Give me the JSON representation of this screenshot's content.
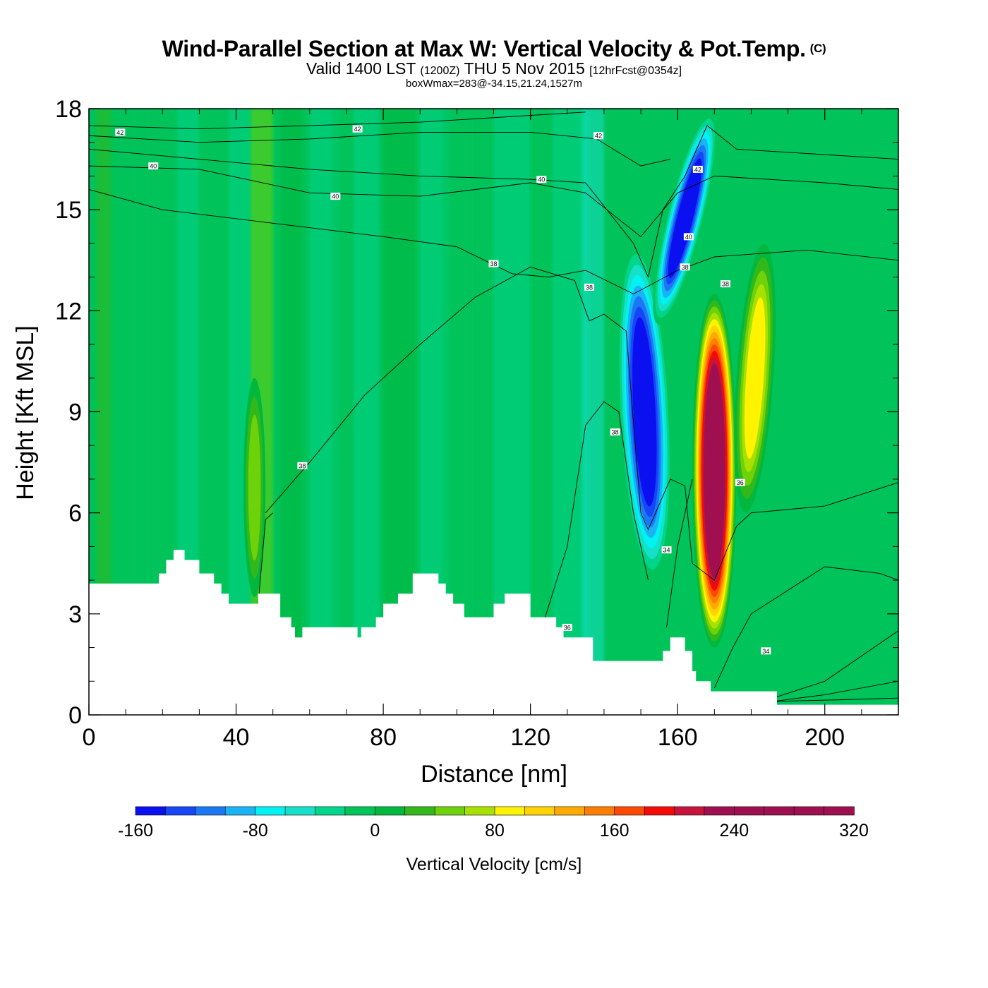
{
  "title": {
    "main": "Wind-Parallel Section at Max W: Vertical Velocity & Pot.Temp.",
    "copyright": "(C)",
    "valid_prefix": "Valid 1400 LST",
    "valid_zulu": "(1200Z)",
    "valid_date": "THU 5 Nov 2015",
    "forecast": "[12hrFcst@0354z]",
    "box_wmax": "boxWmax=283@-34.15,21.24,1527m"
  },
  "colors": {
    "ramp": [
      "#0a10f0",
      "#1646f5",
      "#1a78f5",
      "#19b4f5",
      "#00f2f2",
      "#15e0c8",
      "#00d58c",
      "#00c35a",
      "#00b83e",
      "#32b81a",
      "#6ed20a",
      "#a8e100",
      "#fff300",
      "#ffd200",
      "#ffaa00",
      "#ff7d00",
      "#ff4800",
      "#f50a0a",
      "#c8143c",
      "#a01050"
    ],
    "background_field": "#00c35a",
    "terrain": "#ffffff"
  },
  "chart_data": {
    "type": "heatmap",
    "xlabel": "Distance [nm]",
    "ylabel": "Height [Kft MSL]",
    "xlim": [
      0,
      220
    ],
    "ylim": [
      0,
      18
    ],
    "x_ticks": [
      0,
      40,
      80,
      120,
      160,
      200
    ],
    "y_ticks": [
      0,
      3,
      6,
      9,
      12,
      15,
      18
    ],
    "colorbar": {
      "label": "Vertical Velocity [cm/s]",
      "levels": [
        -160,
        -140,
        -120,
        -100,
        -80,
        -60,
        -40,
        -20,
        0,
        20,
        40,
        60,
        80,
        100,
        120,
        140,
        160,
        180,
        200,
        220,
        240,
        260,
        280,
        300,
        320
      ],
      "tick_labels": [
        "-160",
        "-80",
        "0",
        "80",
        "160",
        "240",
        "320"
      ]
    },
    "terrain_height_kft": [
      [
        0,
        3.9
      ],
      [
        17,
        3.9
      ],
      [
        19,
        4.2
      ],
      [
        21,
        4.6
      ],
      [
        23,
        4.9
      ],
      [
        26,
        4.6
      ],
      [
        30,
        4.2
      ],
      [
        34,
        3.9
      ],
      [
        36,
        3.6
      ],
      [
        38,
        3.3
      ],
      [
        45,
        3.3
      ],
      [
        46,
        3.6
      ],
      [
        51,
        3.6
      ],
      [
        52,
        2.9
      ],
      [
        55,
        2.6
      ],
      [
        56,
        2.3
      ],
      [
        58,
        2.6
      ],
      [
        72,
        2.6
      ],
      [
        73,
        2.3
      ],
      [
        74,
        2.6
      ],
      [
        78,
        2.9
      ],
      [
        80,
        3.3
      ],
      [
        84,
        3.6
      ],
      [
        88,
        4.2
      ],
      [
        93,
        4.2
      ],
      [
        95,
        3.9
      ],
      [
        97,
        3.6
      ],
      [
        99,
        3.3
      ],
      [
        102,
        2.9
      ],
      [
        108,
        2.9
      ],
      [
        110,
        3.3
      ],
      [
        113,
        3.6
      ],
      [
        119,
        3.6
      ],
      [
        120,
        2.9
      ],
      [
        125,
        2.9
      ],
      [
        127,
        2.6
      ],
      [
        129,
        2.3
      ],
      [
        136,
        2.3
      ],
      [
        137,
        1.6
      ],
      [
        154,
        1.6
      ],
      [
        156,
        1.9
      ],
      [
        158,
        2.3
      ],
      [
        161,
        2.3
      ],
      [
        162,
        1.9
      ],
      [
        164,
        1.3
      ],
      [
        165,
        1.0
      ],
      [
        168,
        1.0
      ],
      [
        169,
        0.7
      ],
      [
        186,
        0.7
      ],
      [
        187,
        0.3
      ],
      [
        220,
        0.3
      ]
    ],
    "features": [
      {
        "name": "downdraft-west",
        "x": 151,
        "y_bottom": 4.0,
        "y_top": 14.0,
        "w_min": -160
      },
      {
        "name": "downdraft-east",
        "x": 162,
        "y_bottom": 11.5,
        "y_top": 18.0,
        "w_min": -150
      },
      {
        "name": "updraft-main",
        "x": 170,
        "y_bottom": 2.0,
        "y_top": 12.5,
        "w_max": 283
      },
      {
        "name": "updraft-east",
        "x": 181,
        "y_bottom": 6.0,
        "y_top": 14.0,
        "w_max": 100
      },
      {
        "name": "updraft-small",
        "x": 45,
        "y_bottom": 3.5,
        "y_top": 10.0,
        "w_max": 60
      }
    ],
    "theta_contour_labels": [
      {
        "text": "42",
        "x": 8.5,
        "y": 17.3
      },
      {
        "text": "42",
        "x": 73,
        "y": 17.4
      },
      {
        "text": "40",
        "x": 17.5,
        "y": 16.3
      },
      {
        "text": "40",
        "x": 67,
        "y": 15.4
      },
      {
        "text": "40",
        "x": 123,
        "y": 15.9
      },
      {
        "text": "42",
        "x": 138.5,
        "y": 17.2
      },
      {
        "text": "42",
        "x": 165.5,
        "y": 16.2
      },
      {
        "text": "40",
        "x": 163,
        "y": 14.2
      },
      {
        "text": "38",
        "x": 110,
        "y": 13.4
      },
      {
        "text": "38",
        "x": 162,
        "y": 13.3
      },
      {
        "text": "38",
        "x": 136,
        "y": 12.7
      },
      {
        "text": "38",
        "x": 173,
        "y": 12.8
      },
      {
        "text": "38",
        "x": 143,
        "y": 8.4
      },
      {
        "text": "38",
        "x": 58,
        "y": 7.4
      },
      {
        "text": "36",
        "x": 177,
        "y": 6.9
      },
      {
        "text": "34",
        "x": 157,
        "y": 4.9
      },
      {
        "text": "36",
        "x": 130,
        "y": 2.6
      },
      {
        "text": "34",
        "x": 184,
        "y": 1.9
      }
    ]
  }
}
